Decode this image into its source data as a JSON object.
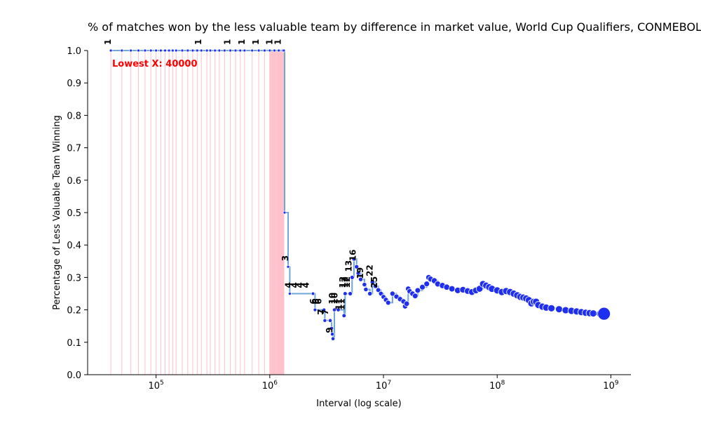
{
  "chart_data": {
    "type": "line",
    "title": "% of matches won by the less valuable team by difference in market value, World Cup Qualifiers, CONMEBOL",
    "xlabel": "Interval (log scale)",
    "ylabel": "Percentage of Less Valuable Team Winning",
    "x_scale": "log",
    "xlim": [
      25000,
      1500000000
    ],
    "ylim": [
      0,
      1
    ],
    "y_ticks": [
      "0.0",
      "0.1",
      "0.2",
      "0.3",
      "0.4",
      "0.5",
      "0.6",
      "0.7",
      "0.8",
      "0.9",
      "1.0"
    ],
    "x_ticks": [
      {
        "value": 100000,
        "base": "10",
        "exp": "5"
      },
      {
        "value": 1000000,
        "base": "10",
        "exp": "6"
      },
      {
        "value": 10000000,
        "base": "10",
        "exp": "7"
      },
      {
        "value": 100000000,
        "base": "10",
        "exp": "8"
      },
      {
        "value": 1000000000,
        "base": "10",
        "exp": "9"
      }
    ],
    "lowest_annotation": "Lowest X: 40000",
    "colors": {
      "line": "#6fa6d6",
      "points": "#1f2ff0",
      "vlines": "#ffc0cb",
      "highlight": "#ff0000"
    },
    "grid": false,
    "series": [
      {
        "values": [
          [
            40000,
            1.0
          ],
          [
            50000,
            1.0
          ],
          [
            60000,
            1.0
          ],
          [
            70000,
            1.0
          ],
          [
            80000,
            1.0
          ],
          [
            90000,
            1.0
          ],
          [
            100000,
            1.0
          ],
          [
            110000,
            1.0
          ],
          [
            120000,
            1.0
          ],
          [
            130000,
            1.0
          ],
          [
            140000,
            1.0
          ],
          [
            150000,
            1.0
          ],
          [
            170000,
            1.0
          ],
          [
            190000,
            1.0
          ],
          [
            210000,
            1.0
          ],
          [
            230000,
            1.0
          ],
          [
            250000,
            1.0
          ],
          [
            280000,
            1.0
          ],
          [
            300000,
            1.0
          ],
          [
            330000,
            1.0
          ],
          [
            360000,
            1.0
          ],
          [
            400000,
            1.0
          ],
          [
            450000,
            1.0
          ],
          [
            500000,
            1.0
          ],
          [
            550000,
            1.0
          ],
          [
            600000,
            1.0
          ],
          [
            700000,
            1.0
          ],
          [
            800000,
            1.0
          ],
          [
            900000,
            1.0
          ],
          [
            1000000,
            1.0
          ],
          [
            1100000,
            1.0
          ],
          [
            1200000,
            1.0
          ],
          [
            1300000,
            1.0
          ],
          [
            1330000,
            1.0
          ],
          [
            1350000,
            0.5
          ],
          [
            1450000,
            0.333
          ],
          [
            1500000,
            0.25
          ],
          [
            2400000,
            0.25
          ],
          [
            2500000,
            0.2
          ],
          [
            3000000,
            0.2
          ],
          [
            3050000,
            0.167
          ],
          [
            3400000,
            0.167
          ],
          [
            3500000,
            0.143
          ],
          [
            3550000,
            0.125
          ],
          [
            3600000,
            0.111
          ],
          [
            3700000,
            0.2
          ],
          [
            4000000,
            0.2
          ],
          [
            4500000,
            0.182
          ],
          [
            4600000,
            0.25
          ],
          [
            5100000,
            0.25
          ],
          [
            5300000,
            0.3
          ],
          [
            5500000,
            0.357
          ],
          [
            5800000,
            0.333
          ],
          [
            6000000,
            0.313
          ],
          [
            6300000,
            0.294
          ],
          [
            6800000,
            0.278
          ],
          [
            7000000,
            0.263
          ],
          [
            7600000,
            0.25
          ],
          [
            8000000,
            0.286
          ],
          [
            8500000,
            0.273
          ],
          [
            9000000,
            0.261
          ],
          [
            9500000,
            0.25
          ],
          [
            10000000,
            0.24
          ],
          [
            10500000,
            0.231
          ],
          [
            11000000,
            0.222
          ],
          [
            12000000,
            0.25
          ],
          [
            13000000,
            0.241
          ],
          [
            14000000,
            0.233
          ],
          [
            15000000,
            0.226
          ],
          [
            15500000,
            0.211
          ],
          [
            16000000,
            0.219
          ],
          [
            16500000,
            0.265
          ],
          [
            17000000,
            0.257
          ],
          [
            18000000,
            0.25
          ],
          [
            19000000,
            0.243
          ],
          [
            20000000,
            0.26
          ],
          [
            22000000,
            0.27
          ],
          [
            24000000,
            0.28
          ],
          [
            25000000,
            0.3
          ],
          [
            26000000,
            0.295
          ],
          [
            28000000,
            0.29
          ],
          [
            30000000,
            0.28
          ],
          [
            33000000,
            0.275
          ],
          [
            36000000,
            0.27
          ],
          [
            40000000,
            0.265
          ],
          [
            45000000,
            0.26
          ],
          [
            50000000,
            0.262
          ],
          [
            55000000,
            0.258
          ],
          [
            60000000,
            0.255
          ],
          [
            65000000,
            0.26
          ],
          [
            70000000,
            0.265
          ],
          [
            75000000,
            0.28
          ],
          [
            80000000,
            0.275
          ],
          [
            85000000,
            0.27
          ],
          [
            90000000,
            0.265
          ],
          [
            100000000,
            0.26
          ],
          [
            110000000,
            0.255
          ],
          [
            120000000,
            0.258
          ],
          [
            130000000,
            0.255
          ],
          [
            140000000,
            0.25
          ],
          [
            150000000,
            0.245
          ],
          [
            160000000,
            0.24
          ],
          [
            170000000,
            0.238
          ],
          [
            180000000,
            0.235
          ],
          [
            190000000,
            0.23
          ],
          [
            200000000,
            0.22
          ],
          [
            210000000,
            0.225
          ],
          [
            220000000,
            0.225
          ],
          [
            230000000,
            0.215
          ],
          [
            250000000,
            0.21
          ],
          [
            270000000,
            0.207
          ],
          [
            300000000,
            0.205
          ],
          [
            350000000,
            0.202
          ],
          [
            400000000,
            0.199
          ],
          [
            450000000,
            0.197
          ],
          [
            500000000,
            0.195
          ],
          [
            550000000,
            0.193
          ],
          [
            600000000,
            0.191
          ],
          [
            650000000,
            0.19
          ],
          [
            700000000,
            0.189
          ],
          [
            800000000,
            0.188
          ],
          [
            870000000,
            0.188
          ]
        ]
      }
    ],
    "count_labels": [
      {
        "x": 40000,
        "y": 1.0,
        "text": "1"
      },
      {
        "x": 250000,
        "y": 1.0,
        "text": "1"
      },
      {
        "x": 450000,
        "y": 1.0,
        "text": "1"
      },
      {
        "x": 600000,
        "y": 1.0,
        "text": "1"
      },
      {
        "x": 800000,
        "y": 1.0,
        "text": "1"
      },
      {
        "x": 1050000,
        "y": 1.0,
        "text": "1"
      },
      {
        "x": 1250000,
        "y": 1.0,
        "text": "1"
      },
      {
        "x": 1450000,
        "y": 0.333,
        "text": "3"
      },
      {
        "x": 1550000,
        "y": 0.25,
        "text": "4"
      },
      {
        "x": 1750000,
        "y": 0.25,
        "text": "4"
      },
      {
        "x": 1950000,
        "y": 0.25,
        "text": "4"
      },
      {
        "x": 2200000,
        "y": 0.25,
        "text": "4"
      },
      {
        "x": 2550000,
        "y": 0.2,
        "text": "6"
      },
      {
        "x": 2700000,
        "y": 0.2,
        "text": "6"
      },
      {
        "x": 2850000,
        "y": 0.2,
        "text": "6"
      },
      {
        "x": 3000000,
        "y": 0.167,
        "text": "7"
      },
      {
        "x": 3250000,
        "y": 0.167,
        "text": "7"
      },
      {
        "x": 3550000,
        "y": 0.111,
        "text": "9"
      },
      {
        "x": 3750000,
        "y": 0.2,
        "text": "10"
      },
      {
        "x": 3950000,
        "y": 0.2,
        "text": "10"
      },
      {
        "x": 4300000,
        "y": 0.182,
        "text": "11"
      },
      {
        "x": 4550000,
        "y": 0.182,
        "text": "11"
      },
      {
        "x": 4650000,
        "y": 0.25,
        "text": "12"
      },
      {
        "x": 4850000,
        "y": 0.25,
        "text": "12"
      },
      {
        "x": 5050000,
        "y": 0.25,
        "text": "12"
      },
      {
        "x": 5250000,
        "y": 0.3,
        "text": "13"
      },
      {
        "x": 5700000,
        "y": 0.333,
        "text": "16"
      },
      {
        "x": 6600000,
        "y": 0.278,
        "text": "19"
      },
      {
        "x": 8000000,
        "y": 0.286,
        "text": "22"
      },
      {
        "x": 8800000,
        "y": 0.25,
        "text": "25"
      }
    ]
  }
}
